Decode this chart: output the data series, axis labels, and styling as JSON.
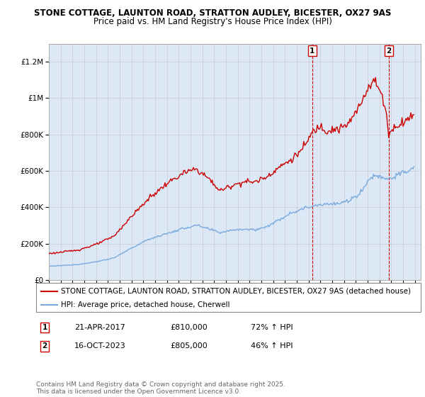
{
  "title_line1": "STONE COTTAGE, LAUNTON ROAD, STRATTON AUDLEY, BICESTER, OX27 9AS",
  "title_line2": "Price paid vs. HM Land Registry's House Price Index (HPI)",
  "ylabel_ticks": [
    "£0",
    "£200K",
    "£400K",
    "£600K",
    "£800K",
    "£1M",
    "£1.2M"
  ],
  "ytick_values": [
    0,
    200000,
    400000,
    600000,
    800000,
    1000000,
    1200000
  ],
  "ylim": [
    0,
    1300000
  ],
  "xlim_start": 1995.0,
  "xlim_end": 2026.5,
  "sale1_x": 2017.31,
  "sale1_y": 810000,
  "sale1_label": "1",
  "sale2_x": 2023.79,
  "sale2_y": 805000,
  "sale2_label": "2",
  "red_line_color": "#cc0000",
  "blue_line_color": "#7aaadd",
  "grid_color": "#cccccc",
  "bg_color": "#ffffff",
  "chart_bg_color": "#dce8f5",
  "legend_label_red": "STONE COTTAGE, LAUNTON ROAD, STRATTON AUDLEY, BICESTER, OX27 9AS (detached house)",
  "legend_label_blue": "HPI: Average price, detached house, Cherwell",
  "table_row1": [
    "1",
    "21-APR-2017",
    "£810,000",
    "72% ↑ HPI"
  ],
  "table_row2": [
    "2",
    "16-OCT-2023",
    "£805,000",
    "46% ↑ HPI"
  ],
  "copyright_text": "Contains HM Land Registry data © Crown copyright and database right 2025.\nThis data is licensed under the Open Government Licence v3.0.",
  "title_fontsize": 8.5,
  "tick_fontsize": 7.5,
  "legend_fontsize": 7.5,
  "table_fontsize": 8,
  "copyright_fontsize": 6.5
}
